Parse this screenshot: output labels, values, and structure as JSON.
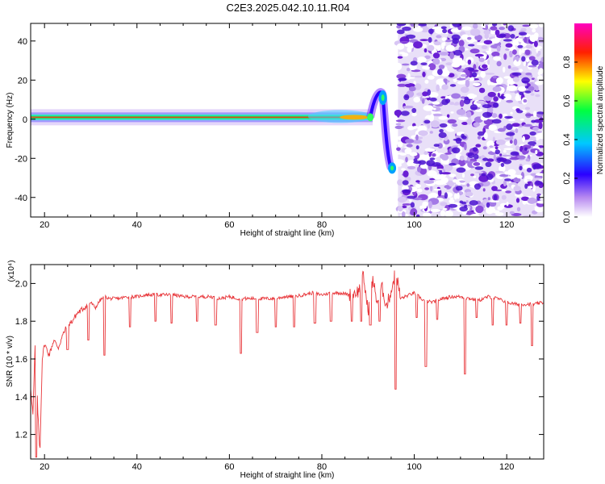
{
  "title": "C2E3.2025.042.10.11.R04",
  "colors": {
    "snr_line": "#e8363a",
    "axis": "#000000",
    "spectrogram_band": [
      "#3a00ff",
      "#00c8ff",
      "#00ff60",
      "#ffee00",
      "#ff3000"
    ],
    "noise": "#8a4bdc"
  },
  "chart_data": [
    {
      "type": "heatmap",
      "xlabel": "Height of straight line (km)",
      "ylabel": "Frequency (Hz)",
      "xlim": [
        17,
        128
      ],
      "ylim": [
        -50,
        49
      ],
      "xticks": [
        "20",
        "40",
        "60",
        "80",
        "100",
        "120"
      ],
      "yticks": [
        "40",
        "20",
        "0",
        "-20",
        "-40"
      ],
      "colorbar": {
        "label": "Normalized spectral amplitude",
        "range": [
          0.0,
          1.0
        ],
        "ticks": [
          "0.0",
          "0.2",
          "0.4",
          "0.6",
          "0.8"
        ],
        "colormap": "white-purple-blue-cyan-green-yellow-red-magenta"
      },
      "features": {
        "carrier_band_hz": 1,
        "carrier_band_extent_km": [
          17,
          91
        ],
        "doppler_excursion_km": [
          92,
          96
        ],
        "doppler_excursion_hz": [
          12,
          -25
        ],
        "noise_region_km": [
          97,
          128
        ]
      }
    },
    {
      "type": "line",
      "xlabel": "Height of straight line (km)",
      "ylabel": "SNR (10 * v/v)",
      "y_multiplier": "(x10⁴)",
      "xlim": [
        17,
        128
      ],
      "ylim": [
        1.07,
        2.1
      ],
      "xticks": [
        "20",
        "40",
        "60",
        "80",
        "100",
        "120"
      ],
      "yticks": [
        "2.0",
        "1.8",
        "1.6",
        "1.4",
        "1.2"
      ],
      "series": [
        {
          "x": [
            17,
            17.5,
            18,
            18.5,
            19,
            19.5,
            20,
            21,
            22,
            23,
            24,
            25,
            26,
            27,
            28,
            29,
            30,
            31,
            32,
            33,
            34,
            36,
            38,
            40,
            42,
            44,
            46,
            48,
            50,
            52,
            54,
            56,
            58,
            60,
            62,
            64,
            66,
            68,
            70,
            72,
            74,
            76,
            78,
            80,
            82,
            84,
            86,
            88,
            89,
            90,
            91,
            92,
            93,
            94,
            95,
            96,
            97,
            98,
            100,
            102,
            104,
            106,
            108,
            110,
            112,
            114,
            116,
            118,
            120,
            122,
            124,
            126,
            128
          ],
          "y": [
            1.45,
            1.3,
            1.7,
            1.35,
            1.1,
            1.6,
            1.68,
            1.62,
            1.7,
            1.66,
            1.73,
            1.78,
            1.8,
            1.84,
            1.86,
            1.88,
            1.9,
            1.87,
            1.91,
            1.93,
            1.92,
            1.92,
            1.93,
            1.93,
            1.94,
            1.94,
            1.94,
            1.94,
            1.93,
            1.93,
            1.93,
            1.93,
            1.92,
            1.93,
            1.92,
            1.92,
            1.92,
            1.92,
            1.92,
            1.93,
            1.93,
            1.94,
            1.95,
            1.94,
            1.95,
            1.95,
            1.94,
            1.96,
            2.04,
            1.85,
            2.02,
            1.9,
            1.98,
            1.88,
            1.96,
            2.07,
            1.92,
            1.93,
            1.95,
            1.91,
            1.9,
            1.92,
            1.93,
            1.93,
            1.92,
            1.91,
            1.93,
            1.92,
            1.9,
            1.89,
            1.89,
            1.89,
            1.9
          ]
        }
      ],
      "dips": [
        {
          "x": 18.2,
          "y": 1.08
        },
        {
          "x": 25,
          "y": 1.65
        },
        {
          "x": 29.5,
          "y": 1.7
        },
        {
          "x": 33,
          "y": 1.62
        },
        {
          "x": 38.5,
          "y": 1.77
        },
        {
          "x": 44,
          "y": 1.8
        },
        {
          "x": 47.5,
          "y": 1.79
        },
        {
          "x": 53,
          "y": 1.8
        },
        {
          "x": 57,
          "y": 1.78
        },
        {
          "x": 62.5,
          "y": 1.63
        },
        {
          "x": 66,
          "y": 1.74
        },
        {
          "x": 70,
          "y": 1.77
        },
        {
          "x": 74,
          "y": 1.77
        },
        {
          "x": 78.5,
          "y": 1.79
        },
        {
          "x": 82,
          "y": 1.8
        },
        {
          "x": 86.5,
          "y": 1.8
        },
        {
          "x": 88.5,
          "y": 1.8
        },
        {
          "x": 90.5,
          "y": 1.78
        },
        {
          "x": 92.5,
          "y": 1.8
        },
        {
          "x": 96,
          "y": 1.44
        },
        {
          "x": 100.5,
          "y": 1.82
        },
        {
          "x": 102.5,
          "y": 1.56
        },
        {
          "x": 105,
          "y": 1.81
        },
        {
          "x": 111,
          "y": 1.52
        },
        {
          "x": 113.5,
          "y": 1.82
        },
        {
          "x": 117,
          "y": 1.78
        },
        {
          "x": 120,
          "y": 1.78
        },
        {
          "x": 123,
          "y": 1.79
        },
        {
          "x": 125.5,
          "y": 1.67
        }
      ]
    }
  ]
}
